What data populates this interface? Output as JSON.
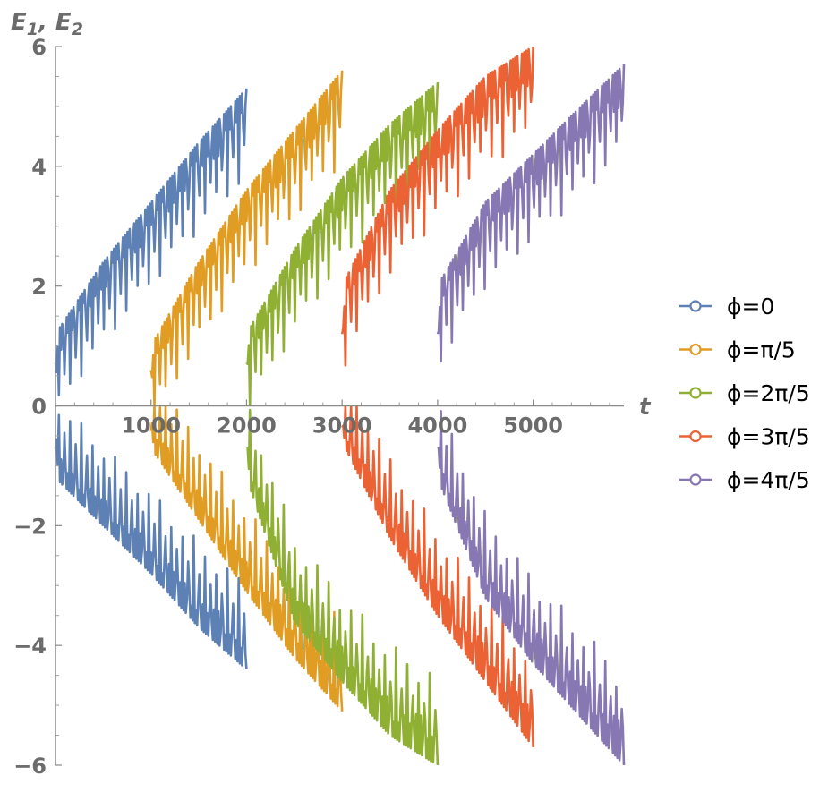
{
  "chart_data": {
    "type": "line",
    "ylabel_main": "E",
    "ylabel_sub1": "1",
    "ylabel_sep": ", E",
    "ylabel_sub2": "2",
    "xlabel": "t",
    "xlim": [
      0,
      5950
    ],
    "ylim": [
      -6,
      6
    ],
    "x_ticks": [
      1000,
      2000,
      3000,
      4000,
      5000
    ],
    "x_tick_labels": [
      "1000",
      "2000",
      "3000",
      "4000",
      "5000"
    ],
    "y_ticks": [
      -6,
      -4,
      -2,
      0,
      2,
      4,
      6
    ],
    "y_tick_labels": [
      "−6",
      "−4",
      "−2",
      "0",
      "2",
      "4",
      "6"
    ],
    "legend_placement": "right",
    "series": [
      {
        "name": "ϕ=0",
        "color": "#5e81b5",
        "t_range": [
          0,
          2000
        ],
        "upper_envelope": {
          "t": [
            0,
            500,
            1000,
            1500,
            2000
          ],
          "y": [
            1.2,
            2.4,
            3.4,
            4.4,
            5.3
          ]
        },
        "lower_envelope": {
          "t": [
            0,
            500,
            1000,
            1500,
            2000
          ],
          "y": [
            -1.2,
            -2.0,
            -2.8,
            -3.7,
            -4.4
          ]
        }
      },
      {
        "name": "ϕ=π/5",
        "color": "#e19c24",
        "t_range": [
          1000,
          3000
        ],
        "upper_envelope": {
          "t": [
            1000,
            1500,
            2000,
            2500,
            3000
          ],
          "y": [
            1.0,
            2.4,
            3.6,
            4.6,
            5.6
          ]
        },
        "lower_envelope": {
          "t": [
            1000,
            1500,
            2000,
            2500,
            3000
          ],
          "y": [
            -0.7,
            -1.9,
            -3.1,
            -4.2,
            -5.1
          ]
        }
      },
      {
        "name": "ϕ=2π/5",
        "color": "#8fb032",
        "t_range": [
          2000,
          4000
        ],
        "upper_envelope": {
          "t": [
            2000,
            2500,
            3000,
            3500,
            4000
          ],
          "y": [
            1.2,
            2.6,
            3.8,
            4.7,
            5.4
          ]
        },
        "lower_envelope": {
          "t": [
            2000,
            2500,
            3000,
            3500,
            4000
          ],
          "y": [
            -1.2,
            -3.6,
            -4.6,
            -5.5,
            -6.0
          ]
        }
      },
      {
        "name": "ϕ=3π/5",
        "color": "#eb6235",
        "t_range": [
          3000,
          5000
        ],
        "upper_envelope": {
          "t": [
            3000,
            3500,
            4000,
            4500,
            5000
          ],
          "y": [
            2.0,
            3.6,
            4.6,
            5.5,
            6.0
          ]
        },
        "lower_envelope": {
          "t": [
            3000,
            3500,
            4000,
            4500,
            5000
          ],
          "y": [
            -0.6,
            -2.2,
            -3.5,
            -4.6,
            -5.7
          ]
        }
      },
      {
        "name": "ϕ=4π/5",
        "color": "#8778b3",
        "t_range": [
          4000,
          5950
        ],
        "upper_envelope": {
          "t": [
            4000,
            4500,
            5000,
            5500,
            5950
          ],
          "y": [
            2.0,
            3.4,
            4.2,
            5.0,
            5.7
          ]
        },
        "lower_envelope": {
          "t": [
            4000,
            4500,
            5000,
            5500,
            5950
          ],
          "y": [
            -1.2,
            -3.2,
            -4.3,
            -5.2,
            -6.0
          ]
        }
      }
    ]
  }
}
